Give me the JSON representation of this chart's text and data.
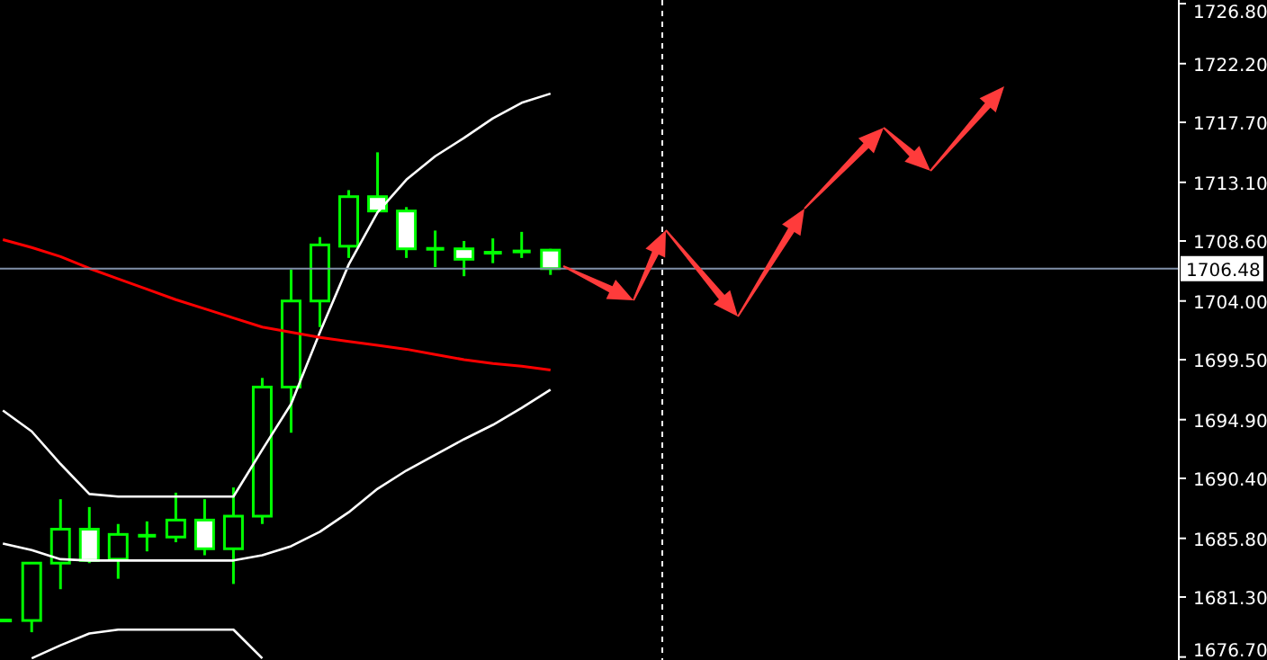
{
  "chart_data": {
    "type": "candlestick",
    "categories": [
      null,
      null,
      null,
      null,
      null,
      null,
      null,
      null,
      null,
      null,
      null,
      null,
      null,
      null,
      null,
      null,
      null,
      null,
      null,
      null,
      null,
      null,
      null,
      null,
      null,
      null,
      null,
      null,
      null,
      null,
      null,
      null,
      null,
      null,
      null,
      null,
      null,
      null,
      null,
      null,
      null
    ],
    "series": [
      {
        "color": "#00ff00",
        "ohlc": [
          [
            1679.5,
            1679.5,
            1679.5,
            1679.5
          ],
          [
            1679.5,
            1683.9,
            1678.6,
            1683.9
          ],
          [
            1683.9,
            1688.8,
            1681.9,
            1686.5
          ],
          [
            1686.5,
            1688.2,
            1683.9,
            1684.1
          ],
          [
            1684.2,
            1686.9,
            1682.7,
            1686.1
          ],
          [
            1686.0,
            1687.1,
            1684.8,
            1686.0
          ],
          [
            1685.9,
            1689.3,
            1685.5,
            1687.2
          ],
          [
            1687.2,
            1688.8,
            1684.5,
            1685.0
          ],
          [
            1685.0,
            1689.7,
            1682.3,
            1687.5
          ],
          [
            1687.5,
            1698.1,
            1686.9,
            1697.4
          ],
          [
            1697.4,
            1706.4,
            1693.9,
            1704.0
          ],
          [
            1704.0,
            1708.9,
            1702.0,
            1708.3
          ],
          [
            1708.2,
            1712.5,
            1707.3,
            1712.0
          ],
          [
            1712.0,
            1715.4,
            1710.9,
            1710.9
          ],
          [
            1710.9,
            1711.2,
            1707.3,
            1708.0
          ],
          [
            1708.0,
            1709.4,
            1706.6,
            1708.0
          ],
          [
            1708.0,
            1708.6,
            1705.9,
            1707.2
          ],
          [
            1707.7,
            1708.8,
            1706.9,
            1707.7
          ],
          [
            1707.8,
            1709.3,
            1707.3,
            1707.8
          ],
          [
            1707.9,
            1708.0,
            1706.0,
            1706.48
          ],
          null,
          null,
          null,
          null,
          null,
          null,
          null,
          null,
          null,
          null,
          null,
          null,
          null,
          null,
          null,
          null,
          null,
          null,
          null,
          null,
          null
        ]
      },
      {
        "type": "line",
        "color": "#ffffff",
        "values": [
          1695.6,
          1694.0,
          1691.5,
          1689.2,
          1689.0,
          1689.0,
          1689.0,
          1689.0,
          1689.0,
          1692.6,
          1696.1,
          1701.6,
          1706.8,
          1710.8,
          1713.3,
          1715.1,
          1716.5,
          1718.0,
          1719.2,
          1719.9,
          null,
          null,
          null,
          null,
          null,
          null,
          null,
          null,
          null,
          null,
          null,
          null,
          null,
          null,
          null,
          null,
          null,
          null,
          null,
          null,
          null
        ]
      },
      {
        "type": "line",
        "color": "#ffffff",
        "values": [
          1685.4,
          1684.9,
          1684.2,
          1684.1,
          1684.1,
          1684.1,
          1684.1,
          1684.1,
          1684.1,
          1684.5,
          1685.2,
          1686.3,
          1687.8,
          1689.6,
          1691.0,
          1692.2,
          1693.4,
          1694.5,
          1695.8,
          1697.2,
          null,
          null,
          null,
          null,
          null,
          null,
          null,
          null,
          null,
          null,
          null,
          null,
          null,
          null,
          null,
          null,
          null,
          null,
          null,
          null,
          null
        ]
      },
      {
        "type": "line",
        "color": "#ffffff",
        "values": [
          null,
          1676.6,
          1677.6,
          1678.5,
          1678.8,
          1678.8,
          1678.8,
          1678.8,
          1678.8,
          1676.6,
          null,
          null,
          null,
          null,
          null,
          null,
          null,
          null,
          null,
          null,
          null,
          null,
          null,
          null,
          null,
          null,
          null,
          null,
          null,
          null,
          null,
          null,
          null,
          null,
          null,
          null,
          null,
          null,
          null,
          null,
          null
        ]
      },
      {
        "type": "line",
        "color": "#ff0000",
        "values": [
          1708.7,
          1708.1,
          1707.4,
          1706.5,
          1705.7,
          1704.9,
          1704.1,
          1703.4,
          1702.7,
          1702.0,
          1701.6,
          1701.2,
          1700.9,
          1700.6,
          1700.3,
          1699.9,
          1699.5,
          1699.2,
          1699.0,
          1698.7,
          null,
          null,
          null,
          null,
          null,
          null,
          null,
          null,
          null,
          null,
          null,
          null,
          null,
          null,
          null,
          null,
          null,
          null,
          null,
          null,
          null
        ]
      }
    ],
    "ylim": [
      1676.47,
      1727.08
    ],
    "yticks": [
      {
        "value": 1676.7,
        "label": "1676.70"
      },
      {
        "value": 1681.3,
        "label": "1681.30"
      },
      {
        "value": 1685.8,
        "label": "1685.80"
      },
      {
        "value": 1690.4,
        "label": "1690.40"
      },
      {
        "value": 1694.9,
        "label": "1694.90"
      },
      {
        "value": 1699.5,
        "label": "1699.50"
      },
      {
        "value": 1704.0,
        "label": "1704.00"
      },
      {
        "value": 1708.6,
        "label": "1708.60"
      },
      {
        "value": 1713.1,
        "label": "1713.10"
      },
      {
        "value": 1717.7,
        "label": "1717.70"
      },
      {
        "value": 1722.2,
        "label": "1722.20"
      },
      {
        "value": 1726.8,
        "label": "1726.80"
      }
    ],
    "ref_lines": [
      {
        "axis": "y",
        "value": 1706.48,
        "label": "1706.48",
        "color": "#8090a8",
        "line_style": "solid"
      }
    ],
    "tick_labels": "y"
  }
}
